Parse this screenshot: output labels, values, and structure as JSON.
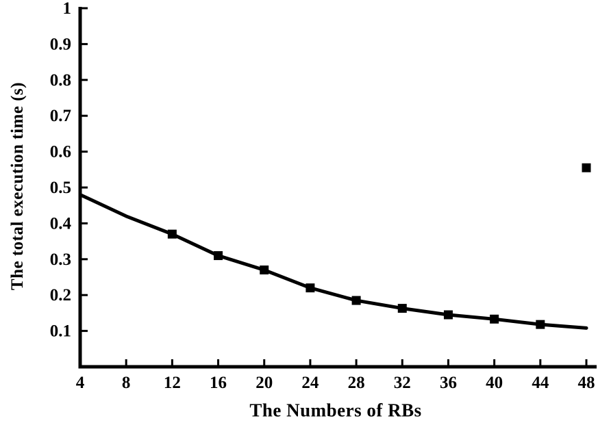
{
  "chart_data": {
    "type": "line",
    "title": "",
    "xlabel": "The Numbers of RBs",
    "ylabel": "The total execution time (s)",
    "xlim": [
      4,
      48
    ],
    "ylim": [
      0,
      1
    ],
    "xticks": [
      4,
      8,
      12,
      16,
      20,
      24,
      28,
      32,
      36,
      40,
      44,
      48
    ],
    "yticks": [
      0.1,
      0.2,
      0.3,
      0.4,
      0.5,
      0.6,
      0.7,
      0.8,
      0.9,
      1
    ],
    "grid": false,
    "legend": false,
    "series": [
      {
        "name": "total execution time",
        "color": "#000000",
        "marker": "square",
        "x": [
          4,
          8,
          12,
          16,
          20,
          24,
          28,
          32,
          36,
          40,
          44,
          48
        ],
        "y": [
          0.48,
          0.42,
          0.37,
          0.31,
          0.27,
          0.22,
          0.185,
          0.163,
          0.145,
          0.133,
          0.118,
          0.108
        ],
        "marker_x": [
          12,
          16,
          20,
          24,
          28,
          32,
          36,
          40,
          44
        ]
      }
    ],
    "stray_marker": {
      "x": 48,
      "y": 0.555
    }
  },
  "colors": {
    "axis": "#000000",
    "line": "#000000",
    "background": "#ffffff"
  }
}
